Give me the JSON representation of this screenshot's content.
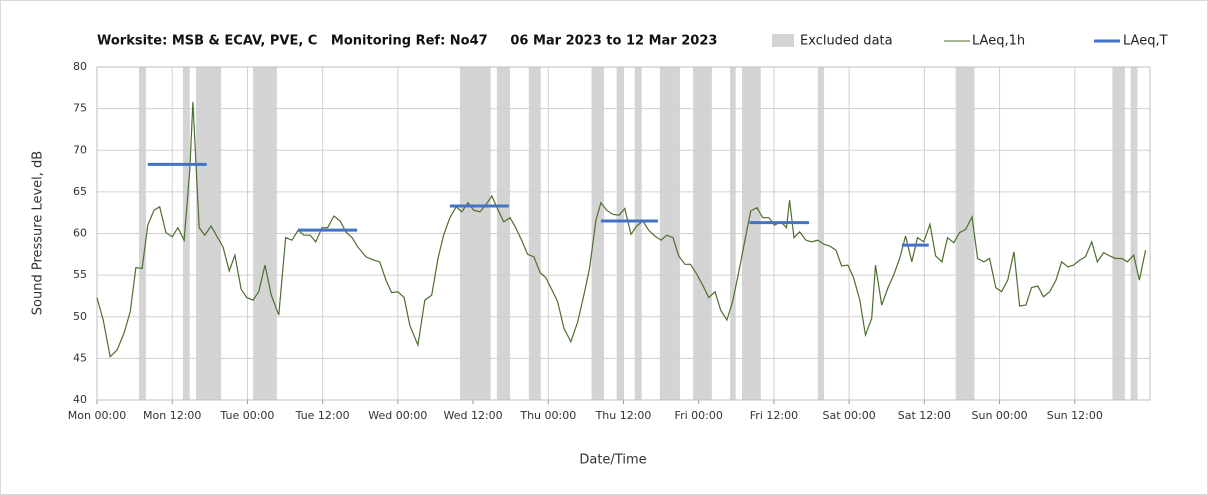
{
  "chart_data": {
    "type": "line",
    "title": "Worksite: MSB & ECAV, PVE, C   Monitoring Ref: No47     06 Mar 2023 to 12 Mar 2023",
    "x_label": "Date/Time",
    "y_label": "Sound Pressure Level, dB",
    "xlim": [
      0,
      168
    ],
    "xticks": [
      {
        "value": 0,
        "label": "Mon 00:00"
      },
      {
        "value": 12,
        "label": "Mon 12:00"
      },
      {
        "value": 24,
        "label": "Tue 00:00"
      },
      {
        "value": 36,
        "label": "Tue 12:00"
      },
      {
        "value": 48,
        "label": "Wed 00:00"
      },
      {
        "value": 60,
        "label": "Wed 12:00"
      },
      {
        "value": 72,
        "label": "Thu 00:00"
      },
      {
        "value": 84,
        "label": "Thu 12:00"
      },
      {
        "value": 96,
        "label": "Fri 00:00"
      },
      {
        "value": 108,
        "label": "Fri 12:00"
      },
      {
        "value": 120,
        "label": "Sat 00:00"
      },
      {
        "value": 132,
        "label": "Sat 12:00"
      },
      {
        "value": 144,
        "label": "Sun 00:00"
      },
      {
        "value": 156,
        "label": "Sun 12:00"
      }
    ],
    "ylim": [
      40,
      80
    ],
    "yticks": [
      40,
      45,
      50,
      55,
      60,
      65,
      70,
      75,
      80
    ],
    "grid": true,
    "excluded": {
      "name": "Excluded data",
      "color": "#d4d4d4",
      "ranges": [
        [
          6.7,
          7.8
        ],
        [
          13.7,
          14.8
        ],
        [
          15.8,
          19.8
        ],
        [
          24.9,
          28.7
        ],
        [
          57.9,
          62.8
        ],
        [
          63.8,
          65.9
        ],
        [
          68.9,
          70.8
        ],
        [
          78.9,
          80.9
        ],
        [
          82.9,
          83.9
        ],
        [
          85.8,
          86.9
        ],
        [
          89.8,
          93.0
        ],
        [
          95.1,
          98.1
        ],
        [
          101.0,
          101.9
        ],
        [
          102.9,
          105.9
        ],
        [
          115.0,
          116.0
        ],
        [
          137.0,
          140.0
        ],
        [
          162.0,
          164.0
        ],
        [
          164.9,
          166.0
        ]
      ]
    },
    "series": [
      {
        "name": "LAeq,1h",
        "color": "#4e6e31",
        "x": [
          0,
          1.0,
          2.1,
          3.2,
          4.3,
          5.3,
          6.2,
          7.2,
          8.1,
          9.1,
          10.0,
          11.0,
          12.0,
          12.9,
          13.9,
          14.8,
          15.3,
          16.3,
          17.2,
          18.2,
          19.1,
          20.1,
          21.1,
          22.0,
          23.0,
          23.9,
          24.9,
          25.8,
          26.8,
          27.8,
          29.0,
          30.1,
          31.1,
          32.1,
          33.0,
          34.0,
          34.9,
          35.9,
          36.8,
          37.8,
          38.8,
          39.7,
          40.7,
          41.6,
          42.9,
          44.2,
          45.1,
          46.1,
          47.0,
          48.0,
          49.0,
          49.9,
          51.2,
          52.3,
          53.4,
          54.4,
          55.3,
          56.3,
          57.3,
          58.2,
          59.2,
          60.1,
          61.1,
          62.0,
          63.0,
          64.0,
          64.9,
          65.9,
          66.8,
          67.8,
          68.7,
          69.7,
          70.7,
          71.6,
          72.6,
          73.5,
          74.5,
          75.6,
          76.7,
          77.8,
          78.6,
          79.6,
          80.4,
          81.3,
          82.3,
          83.3,
          84.2,
          85.2,
          86.1,
          87.1,
          88.0,
          89.0,
          90.0,
          90.9,
          91.9,
          92.8,
          93.8,
          94.7,
          95.7,
          96.7,
          97.6,
          98.6,
          99.5,
          100.5,
          101.4,
          102.4,
          103.3,
          104.3,
          105.3,
          106.2,
          107.2,
          108.1,
          109.1,
          110.0,
          110.5,
          111.2,
          112.1,
          113.1,
          114.0,
          115.0,
          116.0,
          116.9,
          117.9,
          118.8,
          119.8,
          120.7,
          121.7,
          122.6,
          123.6,
          124.2,
          125.2,
          126.2,
          127.1,
          128.1,
          129.0,
          130.0,
          130.9,
          131.9,
          132.9,
          133.8,
          134.8,
          135.7,
          136.7,
          137.6,
          138.6,
          139.6,
          140.5,
          141.5,
          142.4,
          143.4,
          144.3,
          145.3,
          146.3,
          147.2,
          148.2,
          149.1,
          150.1,
          151.0,
          152.0,
          153.0,
          153.9,
          154.9,
          155.8,
          156.8,
          157.7,
          158.7,
          159.6,
          160.6,
          161.6,
          162.5,
          163.5,
          164.4,
          165.4,
          166.3,
          167.3
        ],
        "values": [
          52.3,
          49.6,
          45.2,
          46,
          48,
          50.6,
          55.9,
          55.8,
          61,
          62.8,
          63.2,
          60.1,
          59.6,
          60.7,
          59.2,
          67.6,
          75.8,
          60.7,
          59.8,
          60.9,
          59.7,
          58.4,
          55.5,
          57.4,
          53.3,
          52.3,
          52,
          53,
          56.2,
          52.6,
          50.2,
          59.5,
          59.2,
          60.4,
          59.8,
          59.8,
          59,
          60.7,
          60.7,
          62.1,
          61.5,
          60.2,
          59.5,
          58.4,
          57.2,
          56.8,
          56.6,
          54.4,
          52.9,
          53,
          52.3,
          49,
          46.6,
          52,
          52.6,
          57,
          59.8,
          61.9,
          63.2,
          62.6,
          63.7,
          62.8,
          62.6,
          63.4,
          64.5,
          62.8,
          61.4,
          61.9,
          60.7,
          59.1,
          57.5,
          57.2,
          55.3,
          54.7,
          53.2,
          51.8,
          48.6,
          47,
          49.4,
          53,
          55.9,
          61.6,
          63.7,
          62.8,
          62.3,
          62.2,
          63,
          59.9,
          60.9,
          61.5,
          60.4,
          59.7,
          59.2,
          59.8,
          59.5,
          57.3,
          56.3,
          56.3,
          55.1,
          53.7,
          52.3,
          53,
          50.8,
          49.6,
          51.8,
          55.4,
          58.9,
          62.7,
          63.1,
          61.9,
          61.9,
          61,
          61.4,
          60.7,
          64,
          59.5,
          60.2,
          59.2,
          59,
          59.2,
          58.7,
          58.5,
          58,
          56.1,
          56.2,
          54.7,
          52,
          47.8,
          49.8,
          56.2,
          51.4,
          53.5,
          55,
          57.1,
          59.7,
          56.6,
          59.5,
          59,
          61.1,
          57.3,
          56.6,
          59.5,
          58.9,
          60.1,
          60.5,
          62,
          57,
          56.6,
          57,
          53.5,
          53,
          54.4,
          57.8,
          51.3,
          51.4,
          53.5,
          53.7,
          52.4,
          53,
          54.4,
          56.6,
          56,
          56.2,
          56.8,
          57.2,
          59,
          56.6,
          57.7,
          57.3,
          57,
          57,
          56.6,
          57.4,
          54.4,
          58
        ]
      },
      {
        "name": "LAeq,T",
        "color": "#4472c4",
        "segments": [
          {
            "x0": 8.1,
            "x1": 17.5,
            "value": 68.3
          },
          {
            "x0": 32.1,
            "x1": 41.5,
            "value": 60.4
          },
          {
            "x0": 56.3,
            "x1": 65.7,
            "value": 63.3
          },
          {
            "x0": 80.4,
            "x1": 89.5,
            "value": 61.5
          },
          {
            "x0": 104.1,
            "x1": 113.6,
            "value": 61.3
          },
          {
            "x0": 128.4,
            "x1": 132.7,
            "value": 58.6
          }
        ]
      }
    ]
  }
}
